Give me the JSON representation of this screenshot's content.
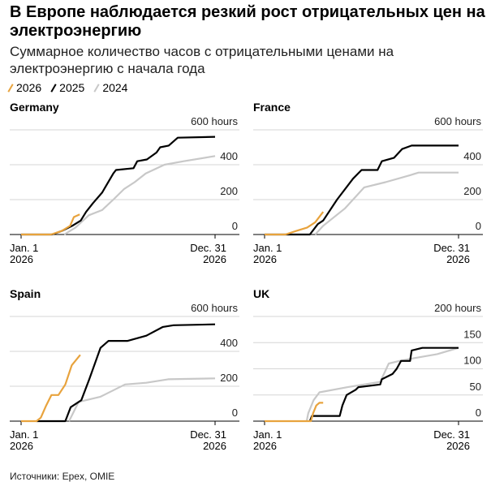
{
  "title": "В Европе наблюдается резкий рост отрицательных цен на электроэнергию",
  "subtitle": "Суммарное количество часов с отрицательными ценами на электроэнергию с начала года",
  "legend": [
    {
      "label": "2026",
      "color": "#e8a33d"
    },
    {
      "label": "2025",
      "color": "#000000"
    },
    {
      "label": "2024",
      "color": "#c8c8c8"
    }
  ],
  "source": "Источники: Epex, OMIE",
  "chart_data": [
    {
      "type": "line",
      "title": "Germany",
      "ylim": [
        0,
        600
      ],
      "unit": "hours",
      "yticks": [
        0,
        200,
        400,
        600
      ],
      "xlim": [
        "2026-01-01",
        "2026-12-31"
      ],
      "xtick_labels": [
        [
          "Jan. 1",
          "2026"
        ],
        [
          "Dec. 31",
          "2026"
        ]
      ],
      "series": [
        {
          "name": "2024",
          "points": [
            [
              "2026-03-23",
              0
            ],
            [
              "2026-04-13",
              40
            ],
            [
              "2026-05-08",
              110
            ],
            [
              "2026-06-02",
              140
            ],
            [
              "2026-06-23",
              200
            ],
            [
              "2026-07-13",
              260
            ],
            [
              "2026-08-02",
              300
            ],
            [
              "2026-08-23",
              350
            ],
            [
              "2026-09-27",
              400
            ],
            [
              "2026-11-02",
              420
            ],
            [
              "2026-12-31",
              450
            ]
          ]
        },
        {
          "name": "2025",
          "points": [
            [
              "2026-01-01",
              0
            ],
            [
              "2026-02-28",
              0
            ],
            [
              "2026-03-18",
              20
            ],
            [
              "2026-04-07",
              50
            ],
            [
              "2026-04-23",
              80
            ],
            [
              "2026-05-03",
              130
            ],
            [
              "2026-05-16",
              180
            ],
            [
              "2026-06-02",
              240
            ],
            [
              "2026-06-23",
              350
            ],
            [
              "2026-06-28",
              370
            ],
            [
              "2026-07-31",
              380
            ],
            [
              "2026-08-07",
              420
            ],
            [
              "2026-08-25",
              430
            ],
            [
              "2026-09-12",
              470
            ],
            [
              "2026-09-19",
              500
            ],
            [
              "2026-10-05",
              510
            ],
            [
              "2026-10-22",
              555
            ],
            [
              "2026-12-31",
              560
            ]
          ]
        },
        {
          "name": "2026",
          "points": [
            [
              "2026-01-01",
              0
            ],
            [
              "2026-02-26",
              0
            ],
            [
              "2026-03-18",
              20
            ],
            [
              "2026-04-03",
              50
            ],
            [
              "2026-04-10",
              100
            ],
            [
              "2026-04-21",
              115
            ]
          ]
        }
      ]
    },
    {
      "type": "line",
      "title": "France",
      "ylim": [
        0,
        600
      ],
      "unit": "hours",
      "yticks": [
        0,
        200,
        400,
        600
      ],
      "xlim": [
        "2026-01-01",
        "2026-12-31"
      ],
      "xtick_labels": [
        [
          "Jan. 1",
          "2026"
        ],
        [
          "Dec. 31",
          "2026"
        ]
      ],
      "series": [
        {
          "name": "2024",
          "points": [
            [
              "2026-04-06",
              0
            ],
            [
              "2026-04-21",
              50
            ],
            [
              "2026-06-01",
              150
            ],
            [
              "2026-07-07",
              270
            ],
            [
              "2026-08-16",
              300
            ],
            [
              "2026-10-01",
              340
            ],
            [
              "2026-10-17",
              355
            ],
            [
              "2026-12-31",
              355
            ]
          ]
        },
        {
          "name": "2025",
          "points": [
            [
              "2026-01-01",
              0
            ],
            [
              "2026-03-27",
              0
            ],
            [
              "2026-04-11",
              60
            ],
            [
              "2026-04-21",
              80
            ],
            [
              "2026-05-17",
              200
            ],
            [
              "2026-06-16",
              320
            ],
            [
              "2026-07-02",
              370
            ],
            [
              "2026-08-01",
              370
            ],
            [
              "2026-08-09",
              420
            ],
            [
              "2026-09-01",
              440
            ],
            [
              "2026-09-16",
              490
            ],
            [
              "2026-10-04",
              510
            ],
            [
              "2026-12-31",
              510
            ]
          ]
        },
        {
          "name": "2026",
          "points": [
            [
              "2026-01-01",
              0
            ],
            [
              "2026-02-09",
              0
            ],
            [
              "2026-03-01",
              20
            ],
            [
              "2026-03-22",
              40
            ],
            [
              "2026-04-06",
              70
            ],
            [
              "2026-04-21",
              130
            ]
          ]
        }
      ]
    },
    {
      "type": "line",
      "title": "Spain",
      "ylim": [
        0,
        600
      ],
      "unit": "hours",
      "yticks": [
        0,
        200,
        400,
        600
      ],
      "xlim": [
        "2026-01-01",
        "2026-12-31"
      ],
      "xtick_labels": [
        [
          "Jan. 1",
          "2026"
        ],
        [
          "Dec. 31",
          "2026"
        ]
      ],
      "series": [
        {
          "name": "2024",
          "points": [
            [
              "2026-04-01",
              0
            ],
            [
              "2026-04-19",
              110
            ],
            [
              "2026-05-30",
              140
            ],
            [
              "2026-07-15",
              210
            ],
            [
              "2026-08-24",
              220
            ],
            [
              "2026-10-04",
              240
            ],
            [
              "2026-12-31",
              245
            ]
          ]
        },
        {
          "name": "2025",
          "points": [
            [
              "2026-01-30",
              0
            ],
            [
              "2026-03-25",
              0
            ],
            [
              "2026-04-04",
              80
            ],
            [
              "2026-04-24",
              120
            ],
            [
              "2026-05-09",
              240
            ],
            [
              "2026-05-30",
              420
            ],
            [
              "2026-06-14",
              460
            ],
            [
              "2026-07-20",
              460
            ],
            [
              "2026-08-24",
              490
            ],
            [
              "2026-09-24",
              540
            ],
            [
              "2026-10-14",
              550
            ],
            [
              "2026-12-31",
              555
            ]
          ]
        },
        {
          "name": "2026",
          "points": [
            [
              "2026-01-01",
              0
            ],
            [
              "2026-01-30",
              0
            ],
            [
              "2026-02-07",
              20
            ],
            [
              "2026-02-17",
              90
            ],
            [
              "2026-02-27",
              150
            ],
            [
              "2026-03-12",
              150
            ],
            [
              "2026-03-25",
              210
            ],
            [
              "2026-04-06",
              320
            ],
            [
              "2026-04-22",
              380
            ]
          ]
        }
      ]
    },
    {
      "type": "line",
      "title": "UK",
      "ylim": [
        0,
        200
      ],
      "unit": "hours",
      "yticks": [
        0,
        50,
        100,
        150,
        200
      ],
      "xlim": [
        "2026-01-01",
        "2026-12-31"
      ],
      "xtick_labels": [
        [
          "Jan. 1",
          "2026"
        ],
        [
          "Dec. 31",
          "2026"
        ]
      ],
      "series": [
        {
          "name": "2024",
          "points": [
            [
              "2026-03-21",
              0
            ],
            [
              "2026-03-24",
              15
            ],
            [
              "2026-04-03",
              40
            ],
            [
              "2026-04-14",
              55
            ],
            [
              "2026-06-06",
              65
            ],
            [
              "2026-08-06",
              75
            ],
            [
              "2026-08-22",
              110
            ],
            [
              "2026-09-11",
              115
            ],
            [
              "2026-10-07",
              120
            ],
            [
              "2026-11-21",
              128
            ],
            [
              "2026-12-31",
              140
            ]
          ]
        },
        {
          "name": "2025",
          "points": [
            [
              "2026-03-27",
              0
            ],
            [
              "2026-03-31",
              10
            ],
            [
              "2026-05-22",
              10
            ],
            [
              "2026-05-27",
              30
            ],
            [
              "2026-06-04",
              50
            ],
            [
              "2026-06-21",
              60
            ],
            [
              "2026-06-26",
              65
            ],
            [
              "2026-08-06",
              70
            ],
            [
              "2026-08-09",
              80
            ],
            [
              "2026-08-29",
              90
            ],
            [
              "2026-09-06",
              100
            ],
            [
              "2026-09-14",
              115
            ],
            [
              "2026-10-01",
              115
            ],
            [
              "2026-10-04",
              135
            ],
            [
              "2026-10-24",
              140
            ],
            [
              "2026-12-31",
              140
            ]
          ]
        },
        {
          "name": "2026",
          "points": [
            [
              "2026-01-01",
              0
            ],
            [
              "2026-03-29",
              0
            ],
            [
              "2026-04-02",
              15
            ],
            [
              "2026-04-08",
              30
            ],
            [
              "2026-04-14",
              35
            ],
            [
              "2026-04-21",
              35
            ]
          ]
        }
      ]
    }
  ]
}
